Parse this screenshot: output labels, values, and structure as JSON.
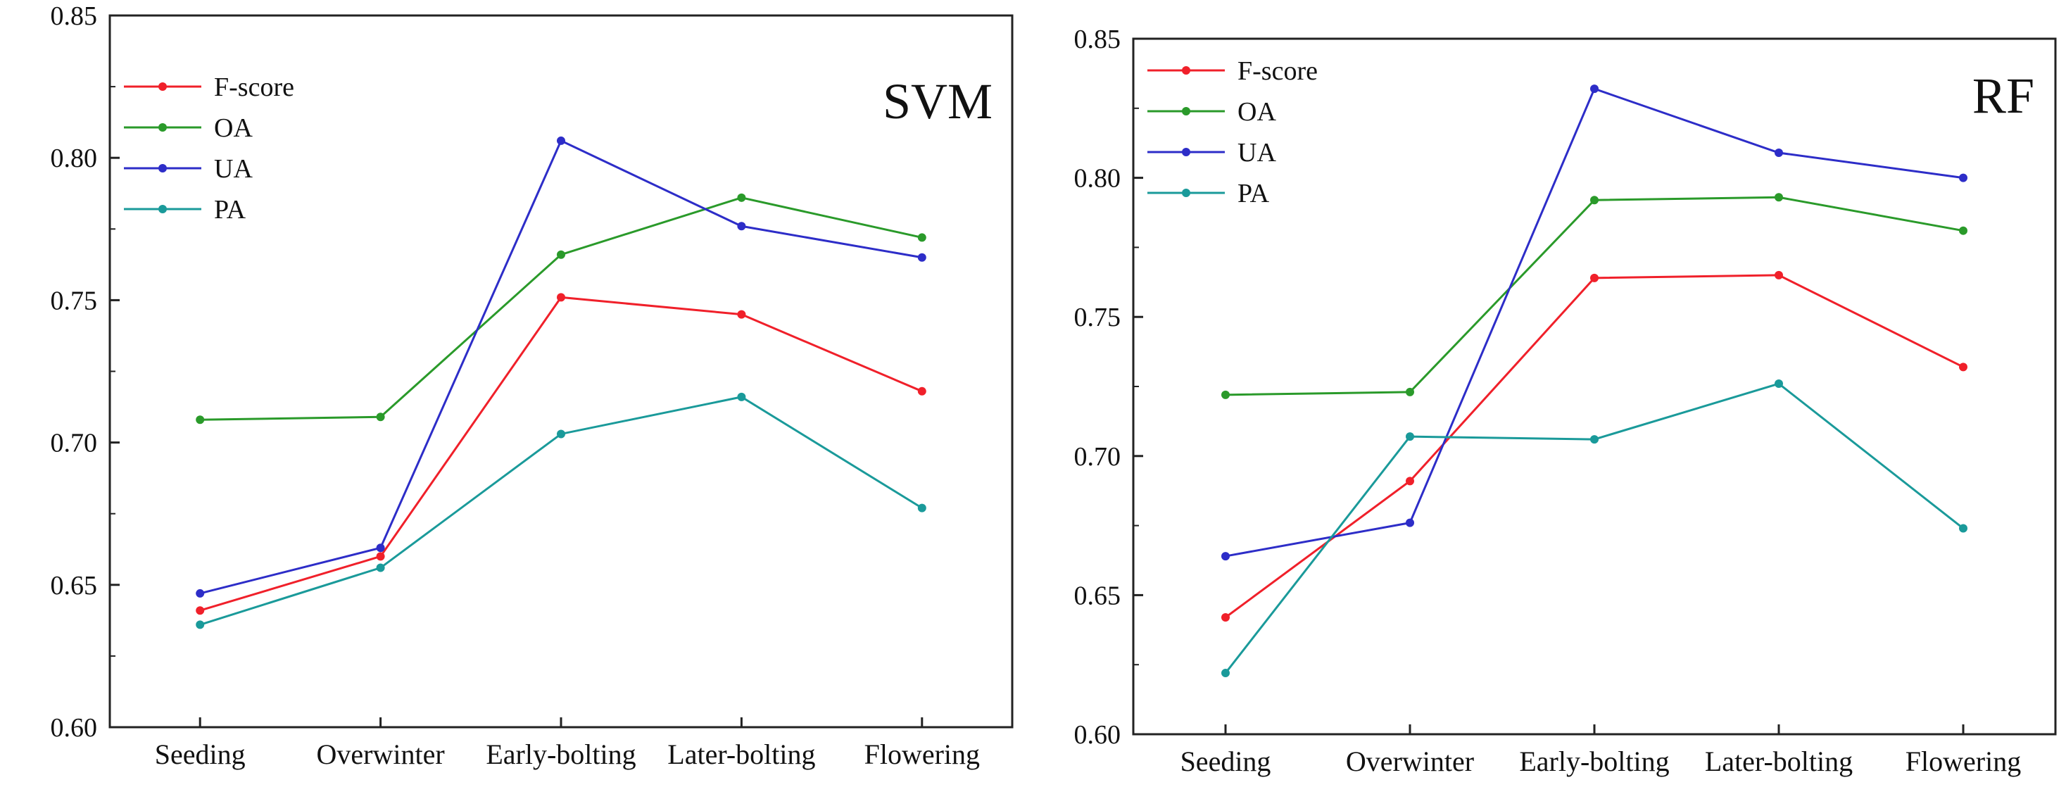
{
  "chart_data": [
    {
      "type": "line",
      "title": "SVM",
      "xlabel": "",
      "ylabel": "",
      "categories": [
        "Seeding",
        "Overwinter",
        "Early-bolting",
        "Later-bolting",
        "Flowering"
      ],
      "ylim": [
        0.6,
        0.85
      ],
      "yticks": [
        "0.60",
        "0.65",
        "0.70",
        "0.75",
        "0.80",
        "0.85"
      ],
      "legend_position": "top-left",
      "grid": false,
      "series": [
        {
          "name": "F-score",
          "color": "#f0202a",
          "values": [
            0.641,
            0.66,
            0.751,
            0.745,
            0.718
          ]
        },
        {
          "name": "OA",
          "color": "#2a9a2a",
          "values": [
            0.708,
            0.709,
            0.766,
            0.786,
            0.772
          ]
        },
        {
          "name": "UA",
          "color": "#2d2dc8",
          "values": [
            0.647,
            0.663,
            0.806,
            0.776,
            0.765
          ]
        },
        {
          "name": "PA",
          "color": "#1a9a9a",
          "values": [
            0.636,
            0.656,
            0.703,
            0.716,
            0.677
          ]
        }
      ]
    },
    {
      "type": "line",
      "title": "RF",
      "xlabel": "",
      "ylabel": "",
      "categories": [
        "Seeding",
        "Overwinter",
        "Early-bolting",
        "Later-bolting",
        "Flowering"
      ],
      "ylim": [
        0.6,
        0.85
      ],
      "yticks": [
        "0.60",
        "0.65",
        "0.70",
        "0.75",
        "0.80",
        "0.85"
      ],
      "legend_position": "top-left",
      "grid": false,
      "series": [
        {
          "name": "F-score",
          "color": "#f0202a",
          "values": [
            0.642,
            0.691,
            0.764,
            0.765,
            0.732
          ]
        },
        {
          "name": "OA",
          "color": "#2a9a2a",
          "values": [
            0.722,
            0.723,
            0.792,
            0.793,
            0.781
          ]
        },
        {
          "name": "UA",
          "color": "#2d2dc8",
          "values": [
            0.664,
            0.676,
            0.832,
            0.809,
            0.8
          ]
        },
        {
          "name": "PA",
          "color": "#1a9a9a",
          "values": [
            0.622,
            0.707,
            0.706,
            0.726,
            0.674
          ]
        }
      ]
    }
  ]
}
